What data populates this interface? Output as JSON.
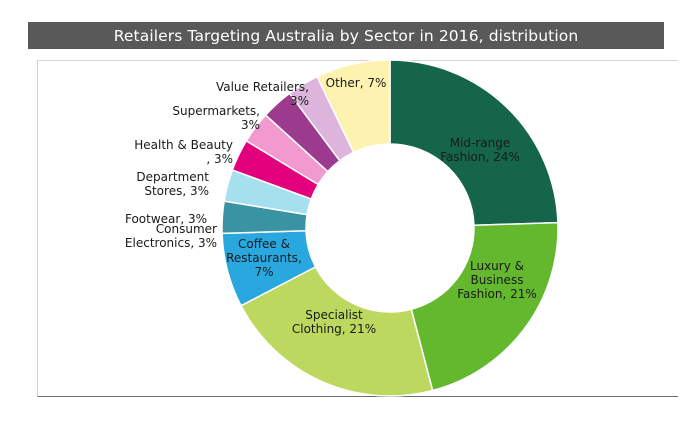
{
  "chart_data": {
    "type": "pie",
    "donut": true,
    "title": "Retailers Targeting Australia by Sector in 2016, distribution",
    "unit": "%",
    "slices": [
      {
        "label": "Mid-range Fashion",
        "value": 24,
        "display": [
          "Mid-range",
          "Fashion, 24%"
        ],
        "color": "#14654a",
        "text_color": "#1a1a1a"
      },
      {
        "label": "Luxury & Business Fashion",
        "value": 21,
        "display": [
          "Luxury &",
          "Business",
          "Fashion, 21%"
        ],
        "color": "#63b82e",
        "text_color": "#1a1a1a"
      },
      {
        "label": "Specialist Clothing",
        "value": 21,
        "display": [
          "Specialist",
          "Clothing, 21%"
        ],
        "color": "#bcd85e",
        "text_color": "#1a1a1a"
      },
      {
        "label": "Coffee & Restaurants",
        "value": 7,
        "display": [
          "Coffee &",
          "Restaurants,",
          "7%"
        ],
        "color": "#28a8df",
        "text_color": "#1a1a1a"
      },
      {
        "label": "Consumer Electronics",
        "value": 3,
        "display": [
          "Consumer",
          "Electronics, 3%"
        ],
        "color": "#3a93a3",
        "text_color": "#1a1a1a"
      },
      {
        "label": "Footwear",
        "value": 3,
        "display": [
          "Footwear, 3%"
        ],
        "color": "#a6e0ef",
        "text_color": "#1a1a1a"
      },
      {
        "label": "Department Stores",
        "value": 3,
        "display": [
          "Department",
          "Stores, 3%"
        ],
        "color": "#e3007d",
        "text_color": "#1a1a1a"
      },
      {
        "label": "Health & Beauty",
        "value": 3,
        "display": [
          "Health  & Beauty",
          ", 3%"
        ],
        "color": "#f29ad0",
        "text_color": "#1a1a1a"
      },
      {
        "label": "Supermarkets",
        "value": 3,
        "display": [
          "Supermarkets,",
          "3%"
        ],
        "color": "#9c3b8e",
        "text_color": "#1a1a1a"
      },
      {
        "label": "Value Retailers",
        "value": 3,
        "display": [
          "Value Retailers,",
          "3%"
        ],
        "color": "#dcb4dc",
        "text_color": "#1a1a1a"
      },
      {
        "label": "Other",
        "value": 7,
        "display": [
          "Other, 7%"
        ],
        "color": "#fdf2b0",
        "text_color": "#1a1a1a"
      }
    ]
  }
}
